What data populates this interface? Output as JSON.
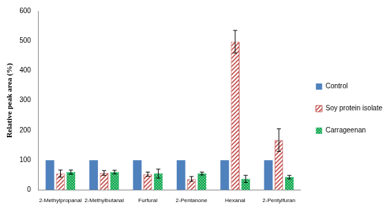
{
  "chart_data": {
    "type": "bar",
    "categories": [
      "2-Methylpropanal",
      "2-Methylbutanal",
      "Furfural",
      "2-Pentanone",
      "Hexanal",
      "2-Pentylfuran"
    ],
    "series": [
      {
        "name": "Control",
        "color": "#4f81bd",
        "values": [
          100,
          100,
          100,
          100,
          100,
          100
        ]
      },
      {
        "name": "Soy protein isolate",
        "color": "#c0504d",
        "values": [
          55,
          57,
          53,
          37,
          497,
          167
        ],
        "errors": [
          12,
          8,
          7,
          8,
          38,
          38
        ]
      },
      {
        "name": "Carrageenan",
        "color": "#1fae5b",
        "values": [
          60,
          60,
          55,
          55,
          37,
          43
        ],
        "errors": [
          7,
          6,
          15,
          5,
          12,
          6
        ]
      }
    ],
    "y_label": "Relative peak area (%)",
    "ylim": [
      0,
      600
    ],
    "yticks": [
      0,
      100,
      200,
      300,
      400,
      500,
      600
    ],
    "grid": false,
    "legend": "right"
  }
}
